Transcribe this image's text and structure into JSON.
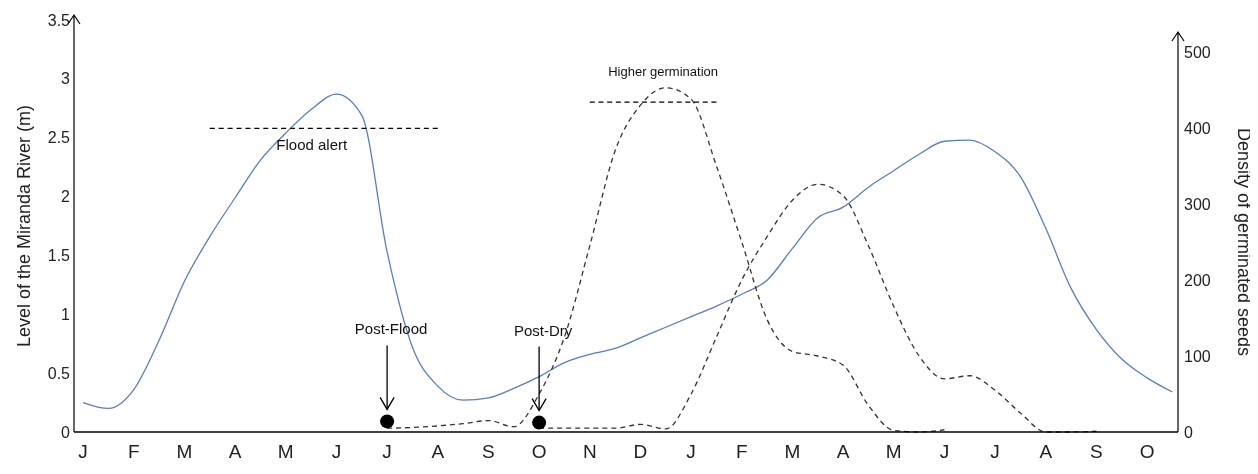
{
  "chart_data": {
    "type": "line",
    "ylabel": "Level of the Miranda  River (m)",
    "y2label": "Density of germinated seeds",
    "categories": [
      "J",
      null,
      "F",
      null,
      "M",
      null,
      "A",
      null,
      "M",
      null,
      "J",
      null,
      "J",
      null,
      "A",
      null,
      "S",
      null,
      "O",
      null,
      "N",
      null,
      "D",
      null,
      "J",
      null,
      "F",
      null,
      "M",
      null,
      "A",
      null,
      "M",
      null,
      "J",
      null,
      "J",
      null,
      "A",
      null,
      "S",
      null,
      "O",
      null
    ],
    "ylim": [
      0,
      3.5
    ],
    "yticks": [
      0,
      0.5,
      1,
      1.5,
      2,
      2.5,
      3,
      3.5
    ],
    "y2lim": [
      0,
      500
    ],
    "y2ticks": [
      0,
      100,
      200,
      300,
      400,
      500
    ],
    "grid": false,
    "marker": "none",
    "series": [
      {
        "color": "#5b7fb5",
        "line_style": "solid",
        "values": [
          0.25,
          0.2,
          0.36,
          0.78,
          1.28,
          1.66,
          1.99,
          2.31,
          2.54,
          2.74,
          2.87,
          2.69,
          1.53,
          0.72,
          0.39,
          0.27,
          0.29,
          0.37,
          0.47,
          0.59,
          0.66,
          0.71,
          0.8,
          0.89,
          0.98,
          1.07,
          1.17,
          1.29,
          1.56,
          1.82,
          1.91,
          2.08,
          2.22,
          2.36,
          2.47,
          2.48,
          2.38,
          2.17,
          1.73,
          1.22,
          0.87,
          0.62,
          0.46,
          0.34
        ]
      },
      {
        "color": "#333333",
        "line_style": "dashed",
        "axis": "y2",
        "values": [
          null,
          null,
          null,
          null,
          null,
          null,
          null,
          null,
          null,
          null,
          null,
          null,
          5,
          6,
          8,
          11,
          15,
          7,
          50,
          125,
          245,
          370,
          430,
          453,
          438,
          350,
          250,
          148,
          106,
          100,
          88,
          35,
          2,
          0,
          3,
          null,
          null,
          null,
          null,
          null,
          null,
          null,
          null,
          null
        ]
      },
      {
        "color": "#333333",
        "line_style": "dashed",
        "axis": "y2",
        "values": [
          null,
          null,
          null,
          null,
          null,
          null,
          null,
          null,
          null,
          null,
          null,
          null,
          null,
          null,
          null,
          null,
          null,
          null,
          5,
          5,
          5,
          5,
          10,
          4,
          50,
          125,
          200,
          257,
          305,
          326,
          311,
          245,
          165,
          100,
          70,
          74,
          55,
          25,
          0,
          0,
          1,
          null,
          null,
          null
        ]
      },
      {
        "color": "#000000",
        "line_style": "dashed",
        "values": [
          null,
          null,
          null,
          null,
          null,
          2.58,
          2.58,
          2.58,
          2.58,
          2.58,
          2.58,
          2.58,
          2.58,
          2.58,
          2.58,
          null,
          null,
          null,
          null,
          null,
          null,
          null,
          null,
          null,
          null,
          null,
          null,
          null,
          null,
          null,
          null,
          null,
          null,
          null,
          null,
          null,
          null,
          null,
          null,
          null,
          null,
          null,
          null,
          null
        ]
      },
      {
        "color": "#000000",
        "line_style": "dashed",
        "axis": "y2",
        "values": [
          null,
          null,
          null,
          null,
          null,
          null,
          null,
          null,
          null,
          null,
          null,
          null,
          null,
          null,
          null,
          null,
          null,
          null,
          null,
          null,
          434,
          434,
          434,
          434,
          434,
          434,
          null,
          null,
          null,
          null,
          null,
          null,
          null,
          null,
          null,
          null,
          null,
          null,
          null,
          null,
          null,
          null,
          null,
          null
        ]
      },
      {
        "type": "scatter",
        "color": "#000000",
        "marker": "circle",
        "values": [
          null,
          null,
          null,
          null,
          null,
          null,
          null,
          null,
          null,
          null,
          null,
          null,
          0.09,
          null,
          null,
          null,
          null,
          null,
          0.08,
          null,
          null,
          null,
          null,
          null,
          null,
          null,
          null,
          null,
          null,
          null,
          null,
          null,
          null,
          null,
          null,
          null,
          null,
          null,
          null,
          null,
          null,
          null,
          null,
          null
        ]
      }
    ],
    "annotations": [
      "Flood alert",
      "Higher germination",
      "Post-Flood",
      "Post-Dry"
    ]
  }
}
